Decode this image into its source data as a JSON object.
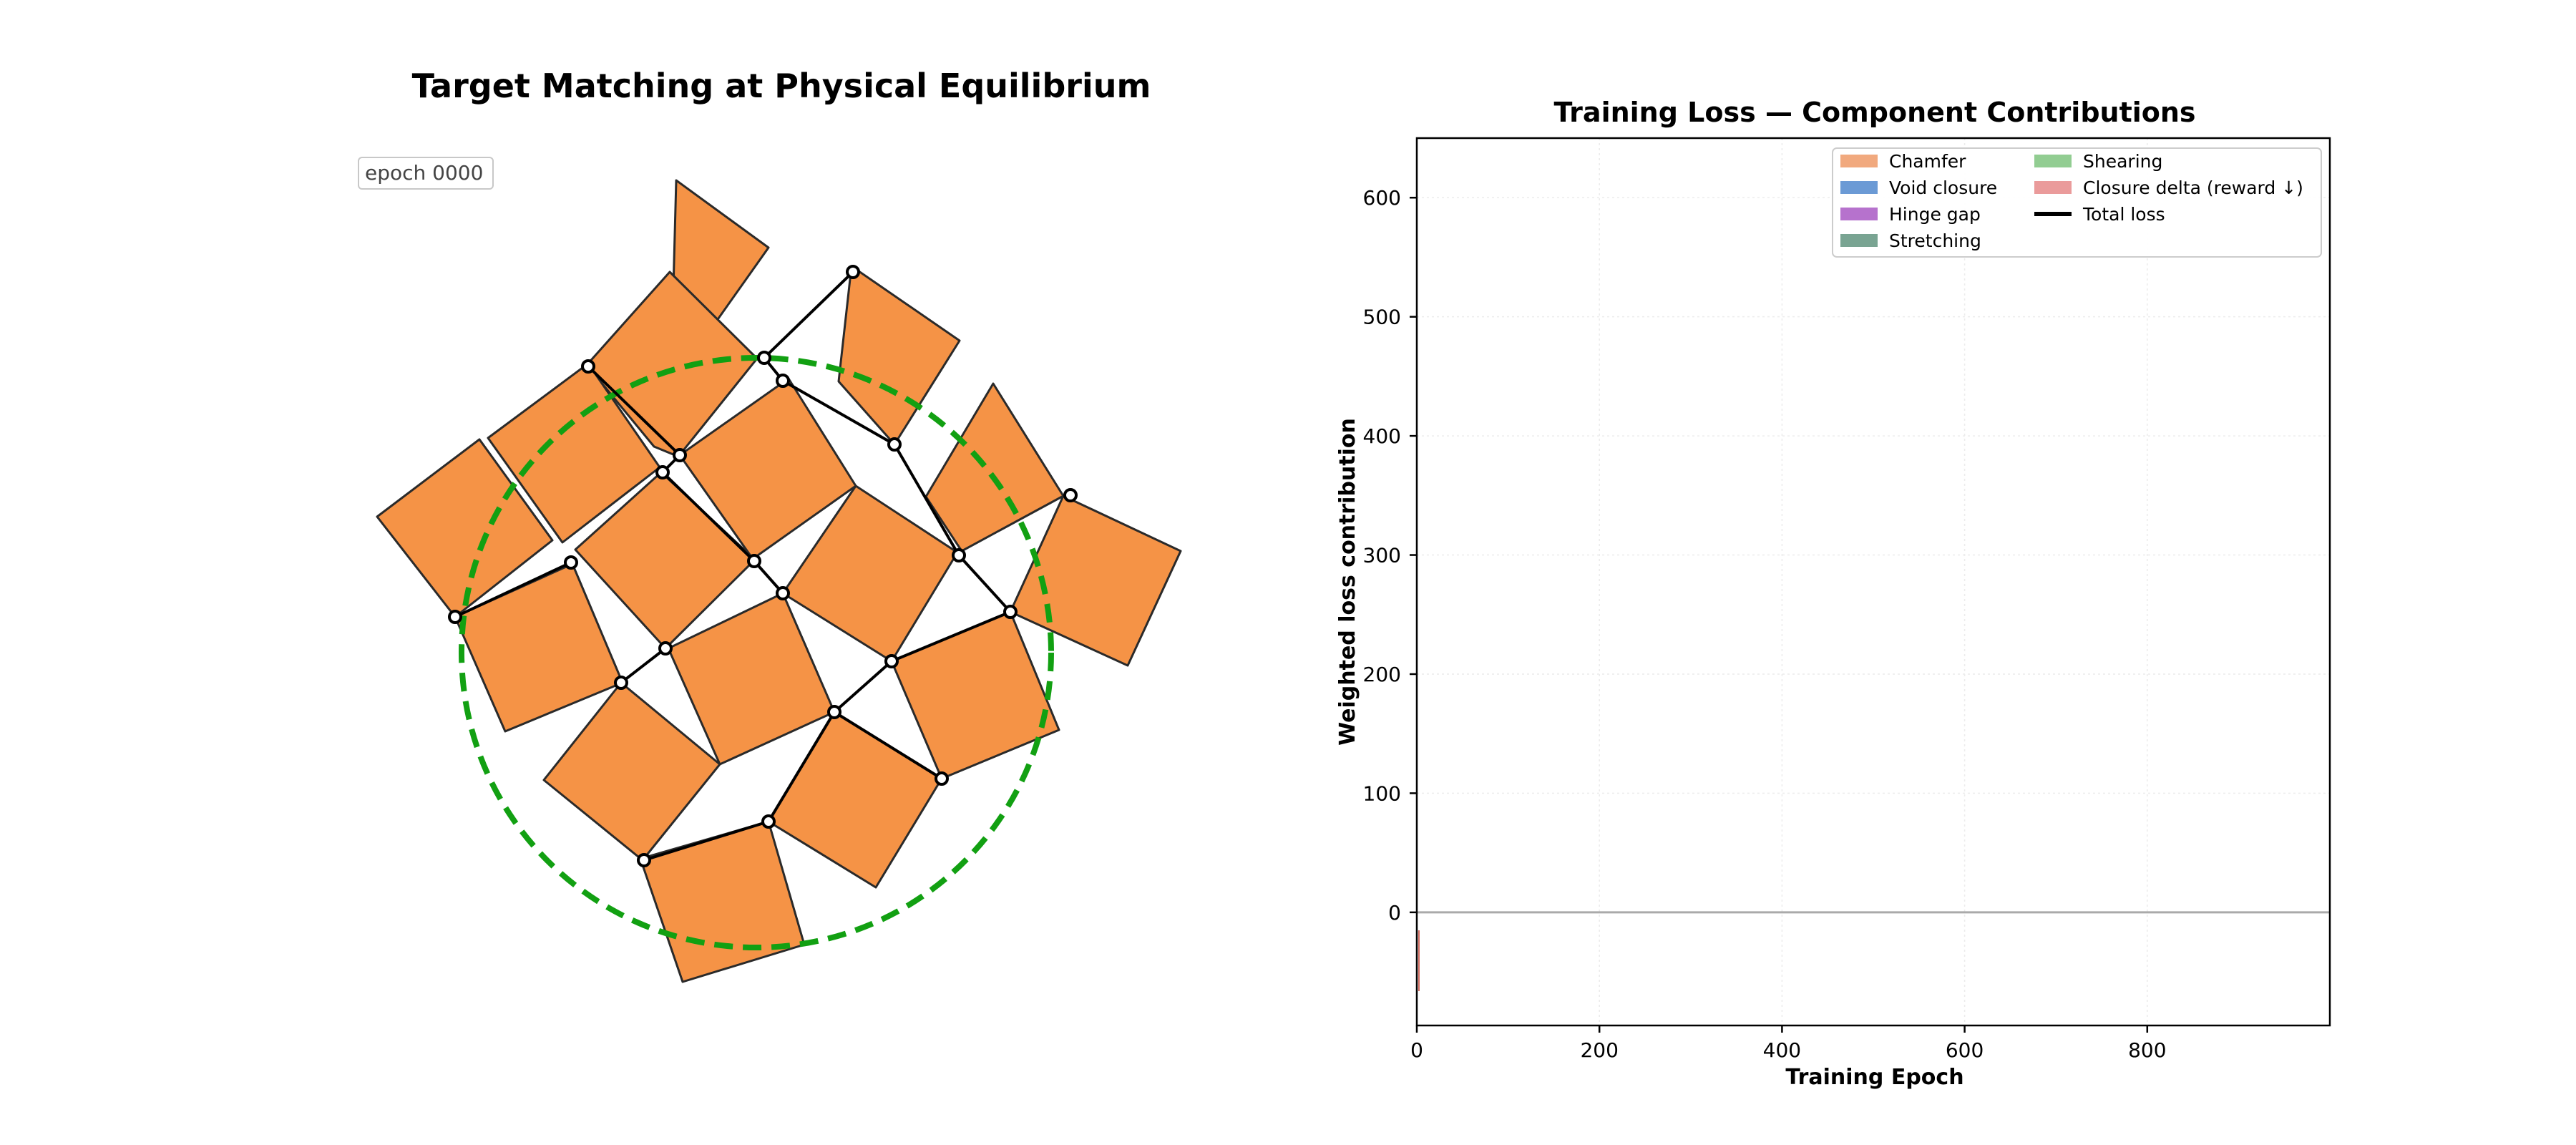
{
  "left_panel": {
    "title": "Target Matching at Physical Equilibrium",
    "epoch_label": "epoch  0000",
    "colors": {
      "tile_fill": "#f59346",
      "tile_edge": "#2a2a2a",
      "target_circle": "#12a012",
      "hinge": "#000000"
    }
  },
  "chart_data": {
    "type": "area",
    "title": "Training Loss — Component Contributions",
    "xlabel": "Training Epoch",
    "ylabel": "Weighted loss contribution",
    "xlim": [
      0,
      1000
    ],
    "ylim": [
      -95,
      650
    ],
    "xticks": [
      0,
      200,
      400,
      600,
      800
    ],
    "yticks": [
      0,
      100,
      200,
      300,
      400,
      500,
      600
    ],
    "grid": true,
    "legend_position": "top-right",
    "legend_columns": 2,
    "series": [
      {
        "name": "Chamfer",
        "color": "#f0a070",
        "style": "area",
        "values": []
      },
      {
        "name": "Void closure",
        "color": "#5b8fd0",
        "style": "area",
        "values": []
      },
      {
        "name": "Hinge gap",
        "color": "#ae63c8",
        "style": "area",
        "values": []
      },
      {
        "name": "Stretching",
        "color": "#6a9a86",
        "style": "area",
        "values": []
      },
      {
        "name": "Shearing",
        "color": "#86c886",
        "style": "area",
        "values": []
      },
      {
        "name": "Closure delta  (reward ↓)",
        "color": "#e89090",
        "style": "area",
        "values": []
      },
      {
        "name": "Total loss",
        "color": "#000000",
        "style": "line",
        "values": []
      }
    ]
  }
}
